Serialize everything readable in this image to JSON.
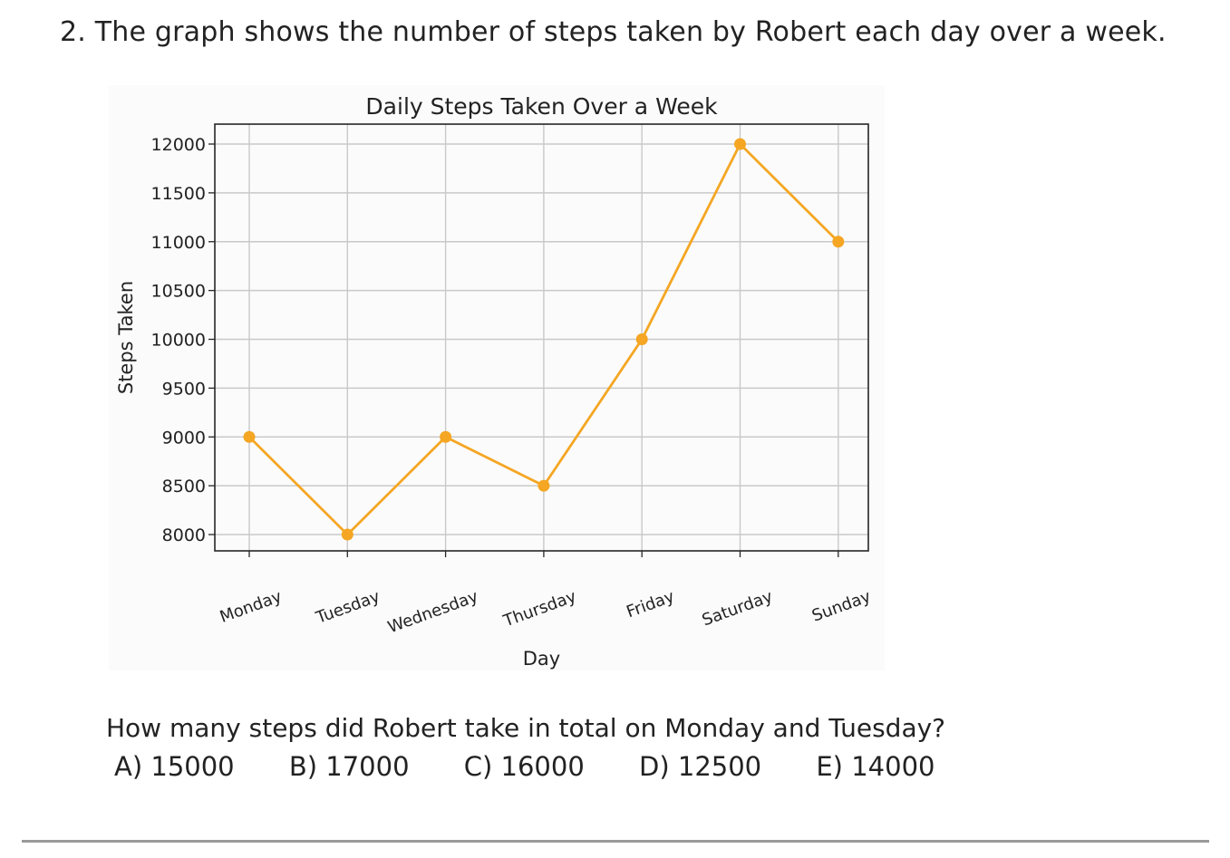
{
  "question": {
    "title": "2. The graph shows the number of steps taken by Robert each day over a week.",
    "prompt": "How many steps did Robert take in total on Monday and Tuesday?",
    "choices": [
      "A) 15000",
      "B) 17000",
      "C) 16000",
      "D) 12500",
      "E) 14000"
    ]
  },
  "chart_data": {
    "type": "line",
    "title": "Daily Steps Taken Over a Week",
    "xlabel": "Day",
    "ylabel": "Steps Taken",
    "categories": [
      "Monday",
      "Tuesday",
      "Wednesday",
      "Thursday",
      "Friday",
      "Saturday",
      "Sunday"
    ],
    "series": [
      {
        "values": [
          9000,
          8000,
          9000,
          8500,
          10000,
          12000,
          11000
        ],
        "color": "#f5a623",
        "marker": "circle"
      }
    ],
    "yticks": [
      8000,
      8500,
      9000,
      9500,
      10000,
      10500,
      11000,
      11500,
      12000
    ],
    "ylim": [
      7900,
      12100
    ],
    "grid": true
  }
}
